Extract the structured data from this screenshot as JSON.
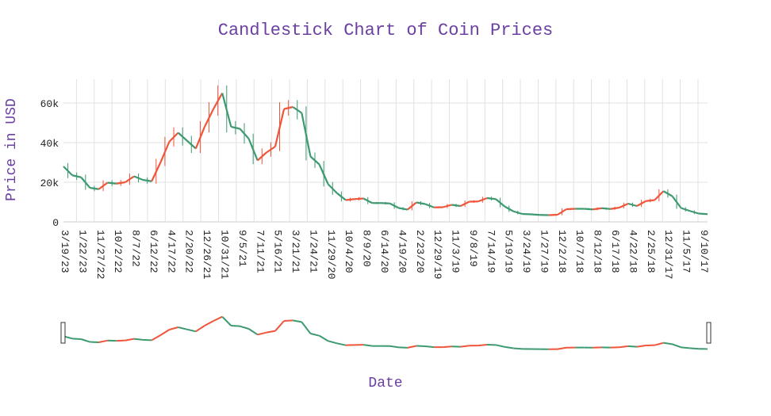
{
  "chart_data": {
    "type": "candlestick",
    "title": "Candlestick Chart of Coin Prices",
    "xlabel": "Date",
    "ylabel": "Price in USD",
    "ylim": [
      0,
      72000
    ],
    "x_axis_reversed": true,
    "grid": true,
    "legend": "none",
    "range_slider": true,
    "y_ticks": [
      {
        "value": 0,
        "label": "0"
      },
      {
        "value": 20000,
        "label": "20k"
      },
      {
        "value": 40000,
        "label": "40k"
      },
      {
        "value": 60000,
        "label": "60k"
      }
    ],
    "x_ticks": [
      "3/19/23",
      "1/22/23",
      "11/27/22",
      "10/2/22",
      "8/7/22",
      "6/12/22",
      "4/17/22",
      "2/20/22",
      "12/26/21",
      "10/31/21",
      "9/5/21",
      "7/11/21",
      "5/16/21",
      "3/21/21",
      "1/24/21",
      "11/29/20",
      "10/4/20",
      "8/9/20",
      "6/14/20",
      "4/19/20",
      "2/23/20",
      "12/29/19",
      "11/3/19",
      "9/8/19",
      "7/14/19",
      "5/19/19",
      "3/24/19",
      "1/27/19",
      "12/2/18",
      "10/7/18",
      "8/12/18",
      "6/17/18",
      "4/22/18",
      "2/25/18",
      "12/31/17",
      "11/5/17",
      "9/10/17"
    ],
    "increasing_color": "#3d9970",
    "decreasing_color": "#ef553b",
    "x": [
      "2023-03-19",
      "2023-02-19",
      "2023-01-22",
      "2022-12-25",
      "2022-11-27",
      "2022-10-30",
      "2022-10-02",
      "2022-09-04",
      "2022-08-07",
      "2022-07-10",
      "2022-06-12",
      "2022-05-15",
      "2022-04-17",
      "2022-03-20",
      "2022-02-20",
      "2022-01-23",
      "2021-12-26",
      "2021-11-28",
      "2021-10-31",
      "2021-10-03",
      "2021-09-05",
      "2021-08-08",
      "2021-07-11",
      "2021-06-13",
      "2021-05-16",
      "2021-04-18",
      "2021-03-21",
      "2021-02-21",
      "2021-01-24",
      "2020-12-27",
      "2020-11-29",
      "2020-11-01",
      "2020-10-04",
      "2020-09-06",
      "2020-08-09",
      "2020-07-12",
      "2020-06-14",
      "2020-05-17",
      "2020-04-19",
      "2020-03-22",
      "2020-02-23",
      "2020-01-26",
      "2019-12-29",
      "2019-12-01",
      "2019-11-03",
      "2019-10-06",
      "2019-09-08",
      "2019-08-11",
      "2019-07-14",
      "2019-06-16",
      "2019-05-19",
      "2019-04-21",
      "2019-03-24",
      "2019-02-24",
      "2019-01-27",
      "2018-12-30",
      "2018-12-02",
      "2018-11-04",
      "2018-10-07",
      "2018-09-09",
      "2018-08-12",
      "2018-07-15",
      "2018-06-17",
      "2018-05-20",
      "2018-04-22",
      "2018-03-25",
      "2018-02-25",
      "2018-01-28",
      "2017-12-31",
      "2017-12-03",
      "2017-11-05",
      "2017-10-08",
      "2017-09-10",
      "2017-08-13"
    ],
    "y": [
      28000,
      23500,
      22500,
      17200,
      16500,
      19800,
      19300,
      20000,
      23000,
      21200,
      20500,
      30000,
      40500,
      45000,
      41000,
      37000,
      48000,
      57000,
      65000,
      48000,
      47000,
      42000,
      31000,
      35000,
      38000,
      57000,
      58000,
      55000,
      33000,
      29000,
      19000,
      14500,
      11000,
      11500,
      11800,
      9500,
      9500,
      9300,
      7000,
      6200,
      9800,
      9000,
      7300,
      7400,
      8600,
      8000,
      10200,
      10300,
      12000,
      11500,
      7800,
      5300,
      4000,
      3800,
      3500,
      3400,
      3600,
      6400,
      6600,
      6600,
      6300,
      6900,
      6500,
      7200,
      9200,
      8000,
      10500,
      11000,
      15500,
      13000,
      7000,
      5500,
      4200,
      3900
    ]
  }
}
